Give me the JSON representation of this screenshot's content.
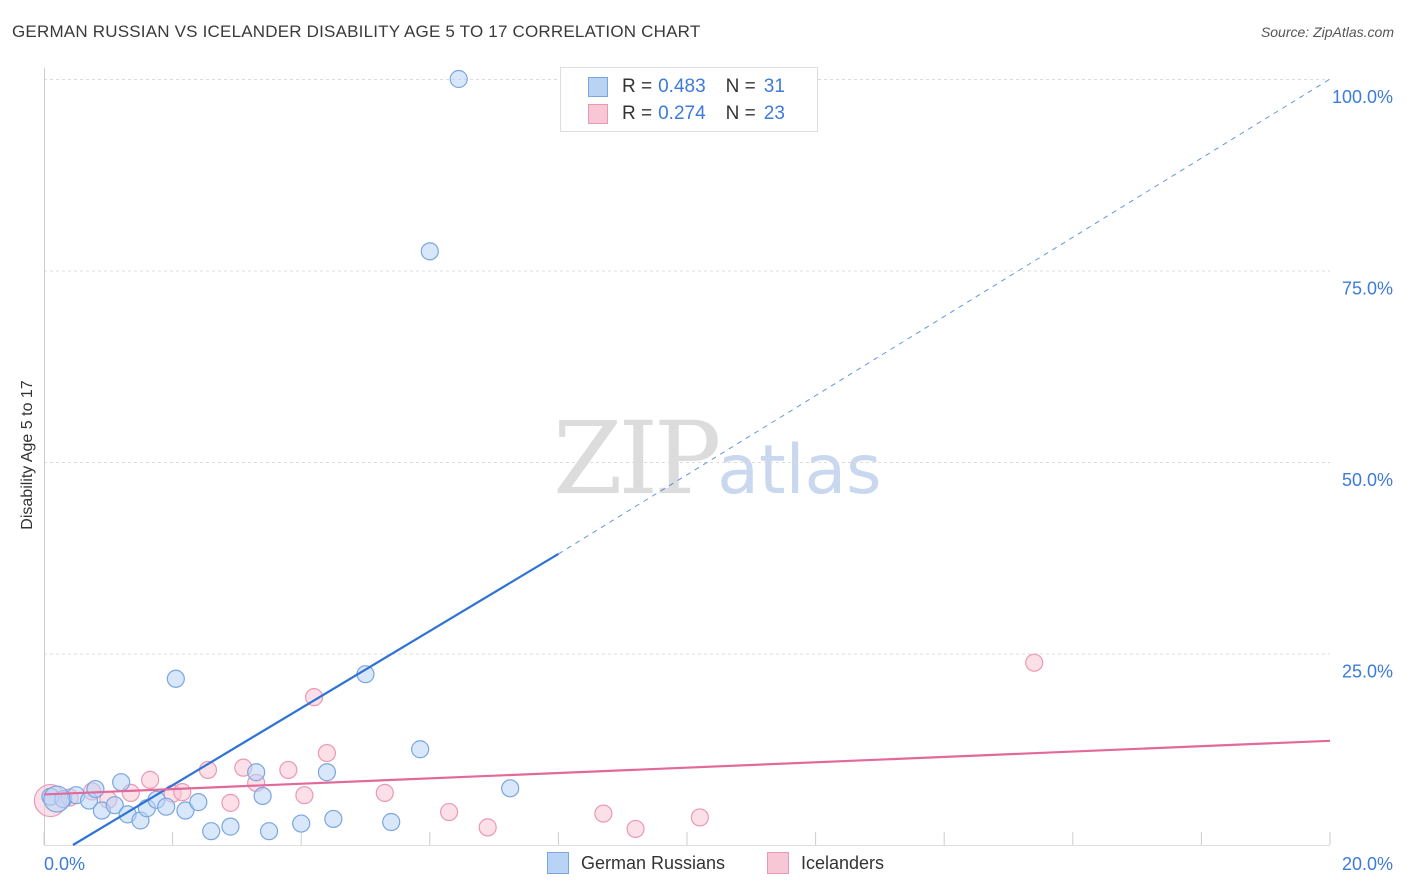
{
  "title": "GERMAN RUSSIAN VS ICELANDER DISABILITY AGE 5 TO 17 CORRELATION CHART",
  "source": "Source: ZipAtlas.com",
  "watermark": {
    "zip": "ZIP",
    "atlas": "atlas"
  },
  "colors": {
    "blue_fill": "#b9d3f5",
    "blue_stroke": "#7aa6e0",
    "blue_line": "#2f73d4",
    "pink_fill": "#f8c7d6",
    "pink_stroke": "#ec98b4",
    "pink_line": "#e3699a",
    "grid": "#dddddd",
    "tick_text": "#3d7bd9"
  },
  "legend": {
    "rows": [
      {
        "r_label": "R = ",
        "r_value": "0.483",
        "n_label": "N = ",
        "n_value": "31"
      },
      {
        "r_label": "R = ",
        "r_value": "0.274",
        "n_label": "N = ",
        "n_value": "23"
      }
    ]
  },
  "bottom_legend": {
    "series1": "German Russians",
    "series2": "Icelanders"
  },
  "chart_data": {
    "type": "scatter",
    "title": "GERMAN RUSSIAN VS ICELANDER DISABILITY AGE 5 TO 17 CORRELATION CHART",
    "xlabel": "",
    "ylabel": "Disability Age 5 to 17",
    "xlim": [
      0,
      20
    ],
    "ylim": [
      0,
      100
    ],
    "x_tick_labels": [
      "0.0%",
      "20.0%"
    ],
    "y_tick_labels": [
      "25.0%",
      "50.0%",
      "75.0%",
      "100.0%"
    ],
    "y_ticks": [
      25,
      50,
      75,
      100
    ],
    "grid": true,
    "series": [
      {
        "name": "German Russians",
        "r": 0.483,
        "n": 31,
        "points": [
          [
            0.1,
            6.3
          ],
          [
            0.3,
            6.0
          ],
          [
            0.5,
            6.5
          ],
          [
            0.7,
            5.8
          ],
          [
            0.8,
            7.3
          ],
          [
            0.9,
            4.5
          ],
          [
            1.1,
            5.2
          ],
          [
            1.2,
            8.2
          ],
          [
            1.3,
            4.0
          ],
          [
            1.5,
            3.2
          ],
          [
            1.6,
            4.8
          ],
          [
            1.75,
            5.9
          ],
          [
            1.9,
            5.0
          ],
          [
            2.05,
            21.7
          ],
          [
            2.2,
            4.5
          ],
          [
            2.4,
            5.6
          ],
          [
            2.6,
            1.8
          ],
          [
            2.9,
            2.4
          ],
          [
            3.3,
            9.5
          ],
          [
            3.4,
            6.4
          ],
          [
            3.5,
            1.8
          ],
          [
            4.0,
            2.8
          ],
          [
            4.4,
            9.5
          ],
          [
            4.5,
            3.4
          ],
          [
            5.0,
            22.3
          ],
          [
            5.4,
            3.0
          ],
          [
            5.85,
            12.5
          ],
          [
            6.0,
            77.5
          ],
          [
            6.45,
            100.0
          ],
          [
            7.25,
            7.4
          ],
          [
            0.2,
            6.0
          ]
        ],
        "trend": {
          "x0": 0.45,
          "y0": 0.0,
          "x1": 8.0,
          "y1": 38.0,
          "dashed_to": [
            20.0,
            100.0
          ]
        }
      },
      {
        "name": "Icelanders",
        "r": 0.274,
        "n": 23,
        "points": [
          [
            0.1,
            5.8
          ],
          [
            0.4,
            6.2
          ],
          [
            0.75,
            7.0
          ],
          [
            1.0,
            5.9
          ],
          [
            1.35,
            6.8
          ],
          [
            1.65,
            8.5
          ],
          [
            2.0,
            6.7
          ],
          [
            2.15,
            6.9
          ],
          [
            2.55,
            9.8
          ],
          [
            2.9,
            5.5
          ],
          [
            3.1,
            10.1
          ],
          [
            3.3,
            8.1
          ],
          [
            3.8,
            9.8
          ],
          [
            4.05,
            6.5
          ],
          [
            4.2,
            19.3
          ],
          [
            4.4,
            12.0
          ],
          [
            5.3,
            6.8
          ],
          [
            6.3,
            4.3
          ],
          [
            6.9,
            2.3
          ],
          [
            8.7,
            4.1
          ],
          [
            9.2,
            2.1
          ],
          [
            10.2,
            3.6
          ],
          [
            15.4,
            23.8
          ]
        ],
        "trend": {
          "x0": 0.0,
          "y0": 6.6,
          "x1": 20.0,
          "y1": 13.6
        }
      }
    ]
  }
}
